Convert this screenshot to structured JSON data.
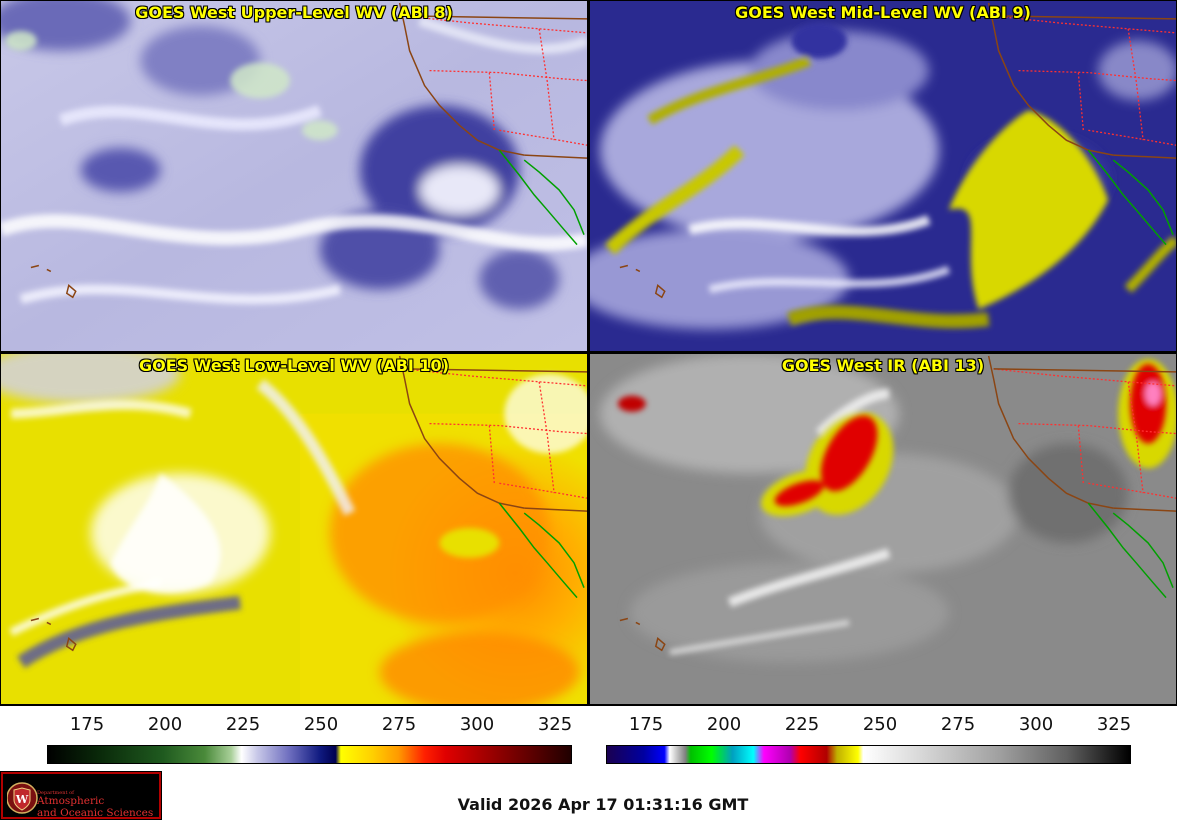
{
  "panels": [
    {
      "id": "upper",
      "title": "GOES West Upper-Level WV (ABI 8)"
    },
    {
      "id": "mid",
      "title": "GOES West Mid-Level WV (ABI 9)"
    },
    {
      "id": "low",
      "title": "GOES West Low-Level WV (ABI 10)"
    },
    {
      "id": "ir",
      "title": "GOES West IR (ABI 13)"
    }
  ],
  "colorbars": {
    "wv": {
      "ticks": [
        "175",
        "200",
        "225",
        "250",
        "275",
        "300",
        "325"
      ]
    },
    "ir": {
      "ticks": [
        "175",
        "200",
        "225",
        "250",
        "275",
        "300",
        "325"
      ]
    }
  },
  "logo": {
    "dept_label": "Department of",
    "line1": "Atmospheric",
    "line2": "and Oceanic Sciences",
    "seal_icon": "uw-seal-icon"
  },
  "footer": {
    "valid_time": "Valid 2026 Apr 17 01:31:16 GMT"
  },
  "colors": {
    "title_text": "#ffff00",
    "state_borders": "#ff3030",
    "coastline": "#8b4513",
    "mexico_coast": "#00a000"
  }
}
